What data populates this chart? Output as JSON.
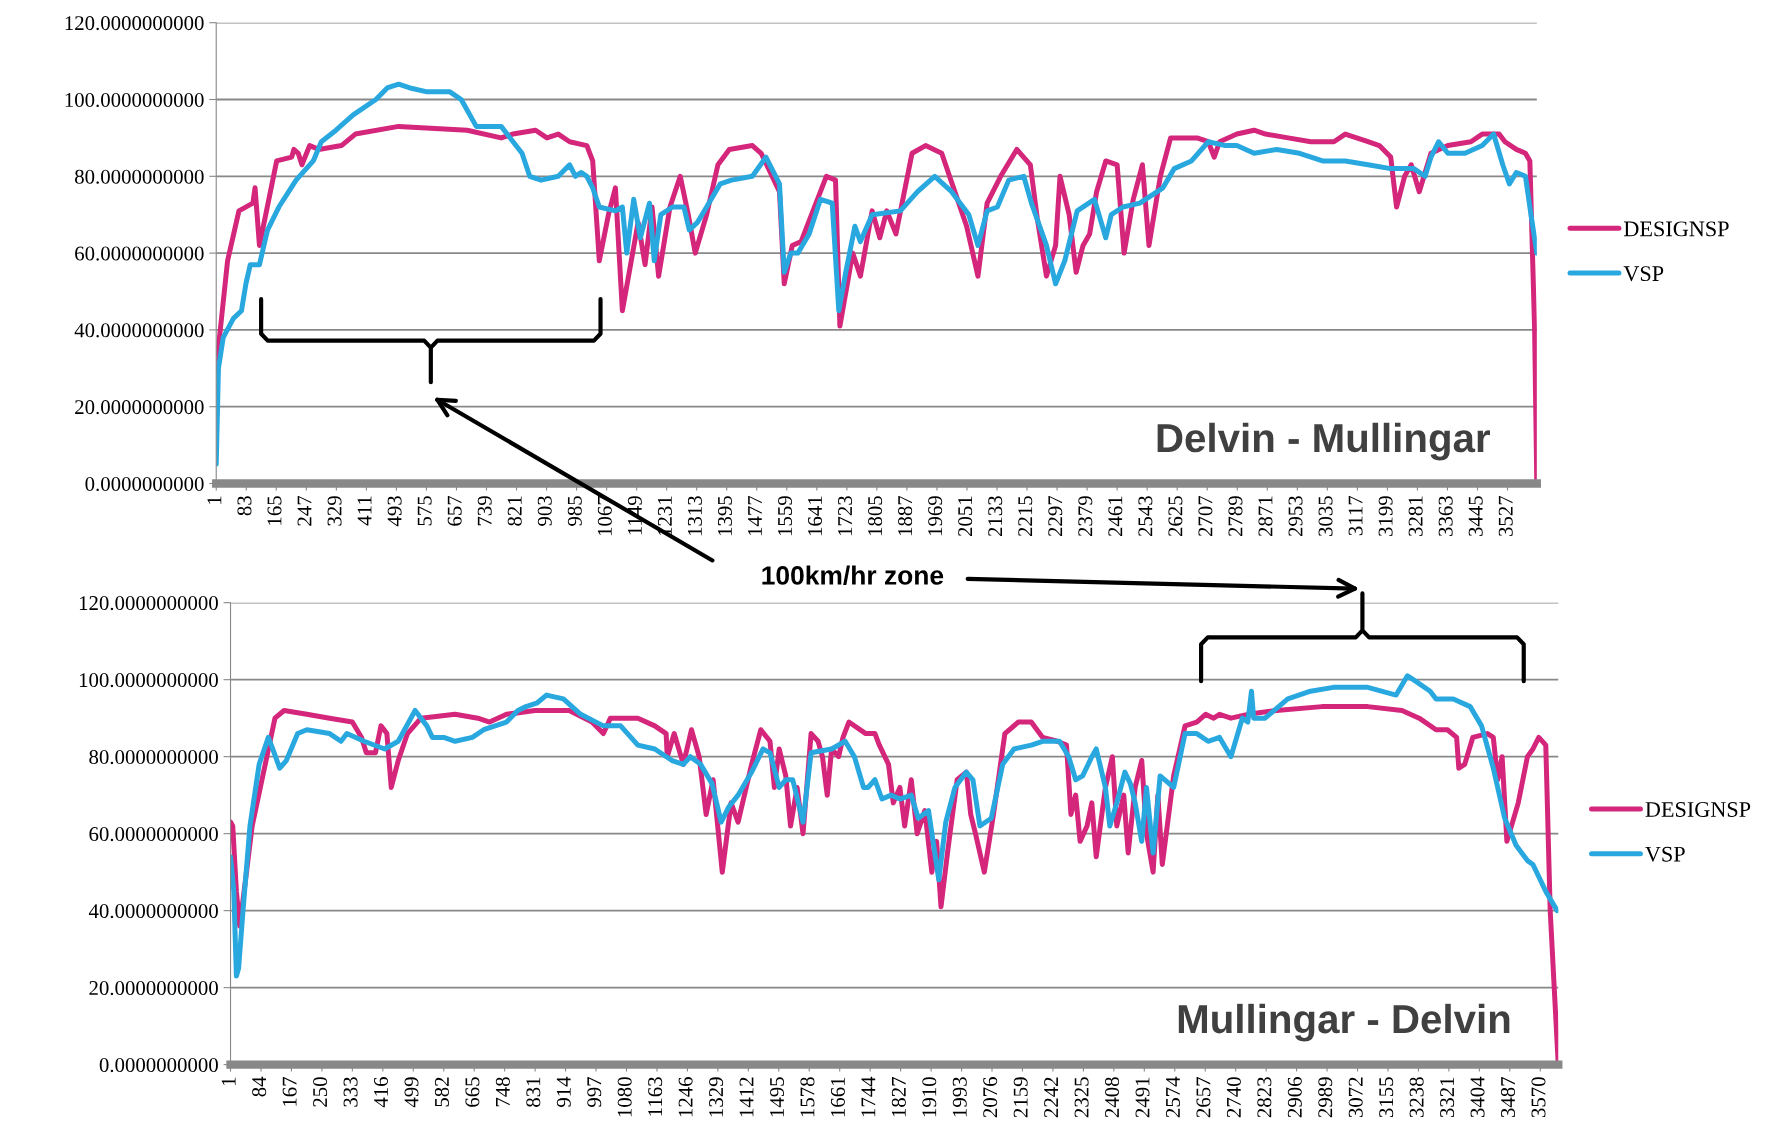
{
  "chart_data": [
    {
      "type": "line",
      "xlim": [
        1,
        3607
      ],
      "ylim": [
        0,
        120
      ],
      "grid": "y",
      "legend": "right",
      "yticks": [
        {
          "value": 0,
          "label": "0.0000000000"
        },
        {
          "value": 20,
          "label": "20.0000000000"
        },
        {
          "value": 40,
          "label": "40.0000000000"
        },
        {
          "value": 60,
          "label": "60.0000000000"
        },
        {
          "value": 80,
          "label": "80.0000000000"
        },
        {
          "value": 100,
          "label": "100.0000000000"
        },
        {
          "value": 120,
          "label": "120.0000000000"
        }
      ],
      "xticks": [
        1,
        83,
        165,
        247,
        329,
        411,
        493,
        575,
        657,
        739,
        821,
        903,
        985,
        1067,
        1149,
        1231,
        1313,
        1395,
        1477,
        1559,
        1641,
        1723,
        1805,
        1887,
        1969,
        2051,
        2133,
        2215,
        2297,
        2379,
        2461,
        2543,
        2625,
        2707,
        2789,
        2871,
        2953,
        3035,
        3117,
        3199,
        3281,
        3363,
        3445,
        3527
      ],
      "annotations": [
        "Delvin - Mullingar",
        "100km/hr zone"
      ],
      "series": [
        {
          "name": "DESIGNSP",
          "color": "#d4267a",
          "x": [
            1,
            32,
            63,
            101,
            107,
            119,
            166,
            207,
            213,
            225,
            235,
            256,
            281,
            343,
            381,
            499,
            686,
            779,
            811,
            873,
            904,
            935,
            966,
            1013,
            1029,
            1047,
            1072,
            1091,
            1110,
            1153,
            1172,
            1191,
            1209,
            1240,
            1268,
            1290,
            1309,
            1340,
            1371,
            1402,
            1465,
            1489,
            1539,
            1552,
            1574,
            1598,
            1667,
            1692,
            1704,
            1739,
            1760,
            1792,
            1813,
            1832,
            1857,
            1901,
            1938,
            1982,
            2025,
            2050,
            2081,
            2106,
            2143,
            2187,
            2224,
            2243,
            2268,
            2293,
            2305,
            2330,
            2349,
            2368,
            2386,
            2405,
            2430,
            2461,
            2480,
            2505,
            2530,
            2548,
            2579,
            2607,
            2679,
            2710,
            2726,
            2741,
            2788,
            2835,
            2866,
            2928,
            2990,
            3053,
            3084,
            3146,
            3177,
            3208,
            3224,
            3246,
            3264,
            3286,
            3318,
            3364,
            3427,
            3458,
            3504,
            3520,
            3551,
            3576,
            3588,
            3601,
            3607
          ],
          "values": [
            30,
            58,
            71,
            73,
            77,
            62,
            84,
            85,
            87,
            86,
            83,
            88,
            87,
            88,
            91,
            93,
            92,
            90,
            91,
            92,
            90,
            91,
            89,
            88,
            84,
            58,
            70,
            77,
            45,
            68,
            57,
            72,
            54,
            72,
            80,
            70,
            60,
            70,
            83,
            87,
            88,
            86,
            76,
            52,
            62,
            63,
            80,
            79,
            41,
            60,
            54,
            71,
            64,
            71,
            65,
            86,
            88,
            86,
            74,
            67,
            54,
            73,
            80,
            87,
            83,
            69,
            54,
            62,
            80,
            70,
            55,
            62,
            65,
            76,
            84,
            83,
            60,
            74,
            83,
            62,
            80,
            90,
            90,
            89,
            85,
            89,
            91,
            92,
            91,
            90,
            89,
            89,
            91,
            89,
            88,
            85,
            72,
            80,
            83,
            76,
            86,
            88,
            89,
            91,
            91,
            89,
            87,
            86,
            84,
            40,
            0
          ]
        },
        {
          "name": "VSP",
          "color": "#29a8e0",
          "x": [
            1,
            7,
            20,
            48,
            70,
            82,
            94,
            119,
            141,
            172,
            219,
            266,
            288,
            328,
            375,
            437,
            468,
            499,
            530,
            577,
            639,
            670,
            711,
            779,
            836,
            857,
            888,
            935,
            966,
            982,
            997,
            1013,
            1029,
            1047,
            1091,
            1110,
            1122,
            1141,
            1159,
            1184,
            1197,
            1215,
            1247,
            1278,
            1293,
            1315,
            1340,
            1377,
            1408,
            1465,
            1502,
            1539,
            1552,
            1570,
            1589,
            1620,
            1651,
            1683,
            1701,
            1720,
            1745,
            1760,
            1792,
            1869,
            1916,
            1963,
            2009,
            2056,
            2081,
            2106,
            2134,
            2165,
            2206,
            2227,
            2268,
            2293,
            2318,
            2352,
            2399,
            2430,
            2445,
            2477,
            2523,
            2586,
            2617,
            2664,
            2710,
            2757,
            2788,
            2835,
            2897,
            2959,
            3022,
            3084,
            3146,
            3208,
            3271,
            3302,
            3318,
            3339,
            3364,
            3411,
            3458,
            3489,
            3514,
            3532,
            3551,
            3576,
            3591,
            3607
          ],
          "values": [
            5,
            30,
            38,
            43,
            45,
            52,
            57,
            57,
            66,
            72,
            79,
            84,
            89,
            92,
            96,
            100,
            103,
            104,
            103,
            102,
            102,
            100,
            93,
            93,
            86,
            80,
            79,
            80,
            83,
            80,
            81,
            80,
            77,
            72,
            71,
            72,
            60,
            74,
            64,
            73,
            58,
            70,
            72,
            72,
            66,
            68,
            72,
            78,
            79,
            80,
            85,
            78,
            55,
            60,
            60,
            65,
            74,
            73,
            45,
            55,
            67,
            63,
            70,
            71,
            76,
            80,
            76,
            70,
            62,
            71,
            72,
            79,
            80,
            73,
            62,
            52,
            58,
            71,
            74,
            64,
            70,
            72,
            73,
            77,
            82,
            84,
            89,
            88,
            88,
            86,
            87,
            86,
            84,
            84,
            83,
            82,
            82,
            80,
            85,
            89,
            86,
            86,
            88,
            91,
            83,
            78,
            81,
            80,
            70,
            60
          ]
        }
      ]
    },
    {
      "type": "line",
      "xlim": [
        1,
        3619
      ],
      "ylim": [
        0,
        120
      ],
      "grid": "y",
      "legend": "right",
      "yticks": [
        {
          "value": 0,
          "label": "0.0000000000"
        },
        {
          "value": 20,
          "label": "20.0000000000"
        },
        {
          "value": 40,
          "label": "40.0000000000"
        },
        {
          "value": 60,
          "label": "60.0000000000"
        },
        {
          "value": 80,
          "label": "80.0000000000"
        },
        {
          "value": 100,
          "label": "100.0000000000"
        },
        {
          "value": 120,
          "label": "120.0000000000"
        }
      ],
      "xticks": [
        1,
        84,
        167,
        250,
        333,
        416,
        499,
        582,
        665,
        748,
        831,
        914,
        997,
        1080,
        1163,
        1246,
        1329,
        1412,
        1495,
        1578,
        1661,
        1744,
        1827,
        1910,
        1993,
        2076,
        2159,
        2242,
        2325,
        2408,
        2491,
        2574,
        2657,
        2740,
        2823,
        2906,
        2989,
        3072,
        3155,
        3238,
        3321,
        3404,
        3487,
        3570
      ],
      "annotations": [
        "Mullingar - Delvin"
      ],
      "series": [
        {
          "name": "DESIGNSP",
          "color": "#d4267a",
          "x": [
            1,
            7,
            17,
            26,
            38,
            60,
            100,
            122,
            147,
            209,
            271,
            333,
            358,
            371,
            396,
            411,
            427,
            439,
            458,
            483,
            520,
            613,
            675,
            707,
            753,
            831,
            924,
            986,
            1017,
            1036,
            1111,
            1157,
            1188,
            1191,
            1210,
            1235,
            1257,
            1278,
            1297,
            1316,
            1341,
            1365,
            1384,
            1421,
            1446,
            1471,
            1483,
            1496,
            1514,
            1527,
            1545,
            1561,
            1583,
            1602,
            1614,
            1627,
            1639,
            1658,
            1670,
            1686,
            1732,
            1757,
            1769,
            1794,
            1807,
            1825,
            1838,
            1856,
            1872,
            1893,
            1912,
            1925,
            1937,
            1956,
            1981,
            2006,
            2018,
            2031,
            2055,
            2080,
            2111,
            2148,
            2183,
            2214,
            2254,
            2279,
            2291,
            2304,
            2316,
            2335,
            2348,
            2360,
            2385,
            2404,
            2416,
            2435,
            2447,
            2466,
            2484,
            2497,
            2515,
            2528,
            2540,
            2571,
            2602,
            2634,
            2658,
            2680,
            2696,
            2727,
            2773,
            2851,
            2975,
            3100,
            3193,
            3240,
            3286,
            3317,
            3342,
            3348,
            3364,
            3386,
            3426,
            3442,
            3454,
            3466,
            3479,
            3510,
            3535,
            3550,
            3566,
            3585,
            3597,
            3619
          ],
          "values": [
            63,
            62,
            45,
            36,
            45,
            62,
            80,
            90,
            92,
            91,
            90,
            89,
            85,
            81,
            81,
            88,
            86,
            72,
            79,
            86,
            90,
            91,
            90,
            89,
            91,
            92,
            92,
            89,
            86,
            90,
            90,
            88,
            86,
            80,
            86,
            78,
            87,
            80,
            65,
            74,
            50,
            68,
            63,
            78,
            87,
            84,
            72,
            82,
            75,
            62,
            72,
            60,
            86,
            84,
            80,
            70,
            82,
            80,
            85,
            89,
            86,
            86,
            83,
            78,
            68,
            72,
            62,
            74,
            60,
            66,
            50,
            58,
            41,
            56,
            74,
            76,
            65,
            60,
            50,
            65,
            86,
            89,
            89,
            85,
            84,
            83,
            65,
            70,
            58,
            62,
            68,
            54,
            72,
            80,
            62,
            70,
            55,
            72,
            79,
            60,
            50,
            70,
            52,
            75,
            88,
            89,
            91,
            90,
            91,
            90,
            91,
            92,
            93,
            93,
            92,
            90,
            87,
            87,
            85,
            77,
            78,
            85,
            86,
            85,
            74,
            80,
            58,
            68,
            80,
            82,
            85,
            83,
            40,
            0
          ]
        },
        {
          "name": "VSP",
          "color": "#29a8e0",
          "x": [
            1,
            10,
            17,
            23,
            35,
            54,
            79,
            104,
            116,
            135,
            153,
            184,
            209,
            271,
            302,
            318,
            365,
            421,
            458,
            504,
            536,
            551,
            582,
            613,
            660,
            691,
            753,
            784,
            806,
            837,
            862,
            908,
            955,
            1017,
            1064,
            1111,
            1157,
            1204,
            1235,
            1254,
            1282,
            1313,
            1338,
            1359,
            1384,
            1421,
            1452,
            1471,
            1496,
            1514,
            1533,
            1561,
            1583,
            1639,
            1676,
            1701,
            1726,
            1738,
            1757,
            1776,
            1801,
            1825,
            1856,
            1875,
            1903,
            1931,
            1950,
            1975,
            2006,
            2024,
            2043,
            2074,
            2105,
            2136,
            2183,
            2214,
            2260,
            2285,
            2304,
            2323,
            2348,
            2360,
            2385,
            2397,
            2416,
            2438,
            2453,
            2466,
            2484,
            2497,
            2515,
            2534,
            2571,
            2602,
            2634,
            2665,
            2696,
            2727,
            2758,
            2773,
            2783,
            2789,
            2820,
            2882,
            2944,
            3006,
            3100,
            3177,
            3208,
            3224,
            3270,
            3286,
            3333,
            3379,
            3410,
            3442,
            3473,
            3504,
            3535,
            3550,
            3585,
            3616
          ],
          "values": [
            54,
            45,
            23,
            25,
            40,
            62,
            78,
            85,
            82,
            77,
            79,
            86,
            87,
            86,
            84,
            86,
            84,
            82,
            84,
            92,
            88,
            85,
            85,
            84,
            85,
            87,
            89,
            92,
            93,
            94,
            96,
            95,
            91,
            88,
            88,
            83,
            82,
            79,
            78,
            80,
            78,
            73,
            63,
            67,
            70,
            76,
            82,
            81,
            72,
            74,
            74,
            63,
            81,
            82,
            84,
            80,
            72,
            72,
            74,
            69,
            70,
            69,
            70,
            64,
            66,
            48,
            63,
            72,
            76,
            74,
            62,
            64,
            78,
            82,
            83,
            84,
            84,
            80,
            74,
            75,
            80,
            82,
            72,
            62,
            68,
            76,
            73,
            68,
            58,
            72,
            55,
            75,
            72,
            86,
            86,
            84,
            85,
            80,
            90,
            89,
            97,
            90,
            90,
            95,
            97,
            98,
            98,
            96,
            101,
            100,
            97,
            95,
            95,
            93,
            88,
            77,
            64,
            57,
            53,
            52,
            45,
            40
          ]
        }
      ]
    }
  ]
}
